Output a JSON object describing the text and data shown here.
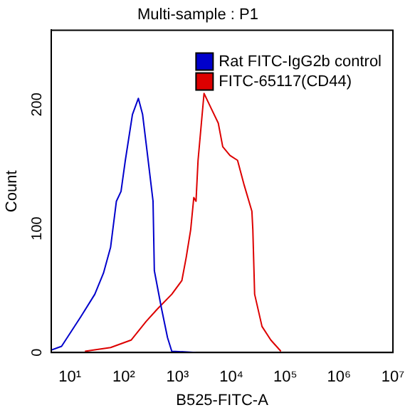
{
  "chart_data": {
    "type": "line",
    "title": "Multi-sample : P1",
    "xlabel": "B525-FITC-A",
    "ylabel": "Count",
    "log": "x",
    "grid": false,
    "legend": "top right",
    "marker": "none",
    "line_style": "solid",
    "xlim": [
      4.5,
      10000000
    ],
    "xticks": [
      {
        "value": 10,
        "label": "10¹"
      },
      {
        "value": 100,
        "label": "10²"
      },
      {
        "value": 1000,
        "label": "10³"
      },
      {
        "value": 10000,
        "label": "10⁴"
      },
      {
        "value": 100000,
        "label": "10⁵"
      },
      {
        "value": 1000000,
        "label": "10⁶"
      },
      {
        "value": 10000000,
        "label": "10⁷"
      }
    ],
    "ylim": [
      0,
      260
    ],
    "yticks": [
      0,
      100,
      200
    ],
    "series": [
      {
        "name": "Rat FITC-IgG2b control",
        "color": "#0000cc",
        "x": [
          4.5,
          7,
          16,
          29,
          42,
          57,
          73,
          89,
          107,
          145,
          187,
          224,
          270,
          350,
          370,
          500,
          650,
          780,
          2200
        ],
        "values": [
          2,
          5,
          29,
          47,
          64,
          85,
          122,
          130,
          155,
          192,
          205,
          192,
          163,
          122,
          66,
          36,
          12,
          1,
          0
        ]
      },
      {
        "name": "FITC-65117(CD44)",
        "color": "#dd0000",
        "x": [
          19,
          57,
          137,
          260,
          420,
          780,
          1200,
          1450,
          1750,
          2000,
          2200,
          2400,
          3100,
          4200,
          5700,
          6900,
          9400,
          13000,
          17000,
          24000,
          25000,
          27000,
          37000,
          54000,
          83000
        ],
        "values": [
          1,
          4,
          10,
          25,
          35,
          47,
          58,
          77,
          99,
          125,
          122,
          155,
          209,
          197,
          185,
          166,
          159,
          155,
          136,
          114,
          99,
          47,
          21,
          10,
          1
        ]
      }
    ]
  }
}
